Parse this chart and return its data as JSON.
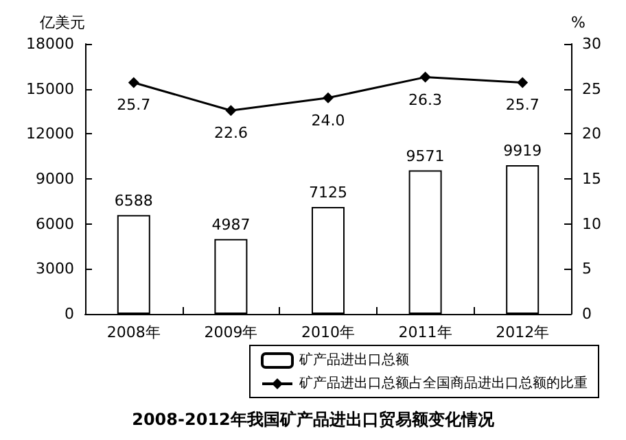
{
  "chart_data": {
    "type": "bar",
    "title": "2008-2012年我国矿产品进出口贸易额变化情况",
    "ylabel": "亿美元",
    "y2label": "%",
    "categories": [
      "2008年",
      "2009年",
      "2010年",
      "2011年",
      "2012年"
    ],
    "series": [
      {
        "name": "矿产品进出口总额",
        "color": "#ffffff",
        "values": [
          6588,
          4987,
          7125,
          9571,
          9919
        ]
      },
      {
        "name": "矿产品进出口总额占全国商品进出口总额的比重",
        "type": "line",
        "axis": "y2",
        "color": "#000000",
        "marker": "diamond",
        "values": [
          25.7,
          22.6,
          24.0,
          26.3,
          25.7
        ],
        "value_labels": [
          "25.7",
          "22.6",
          "24.0",
          "26.3",
          "25.7"
        ]
      }
    ],
    "ylim": [
      0,
      18000
    ],
    "yticks": [
      0,
      3000,
      6000,
      9000,
      12000,
      15000,
      18000
    ],
    "y2lim": [
      0,
      30
    ],
    "y2ticks": [
      0,
      5,
      10,
      15,
      20,
      25,
      30
    ],
    "data_labels": true,
    "legend": "bottom right",
    "grid": false
  }
}
